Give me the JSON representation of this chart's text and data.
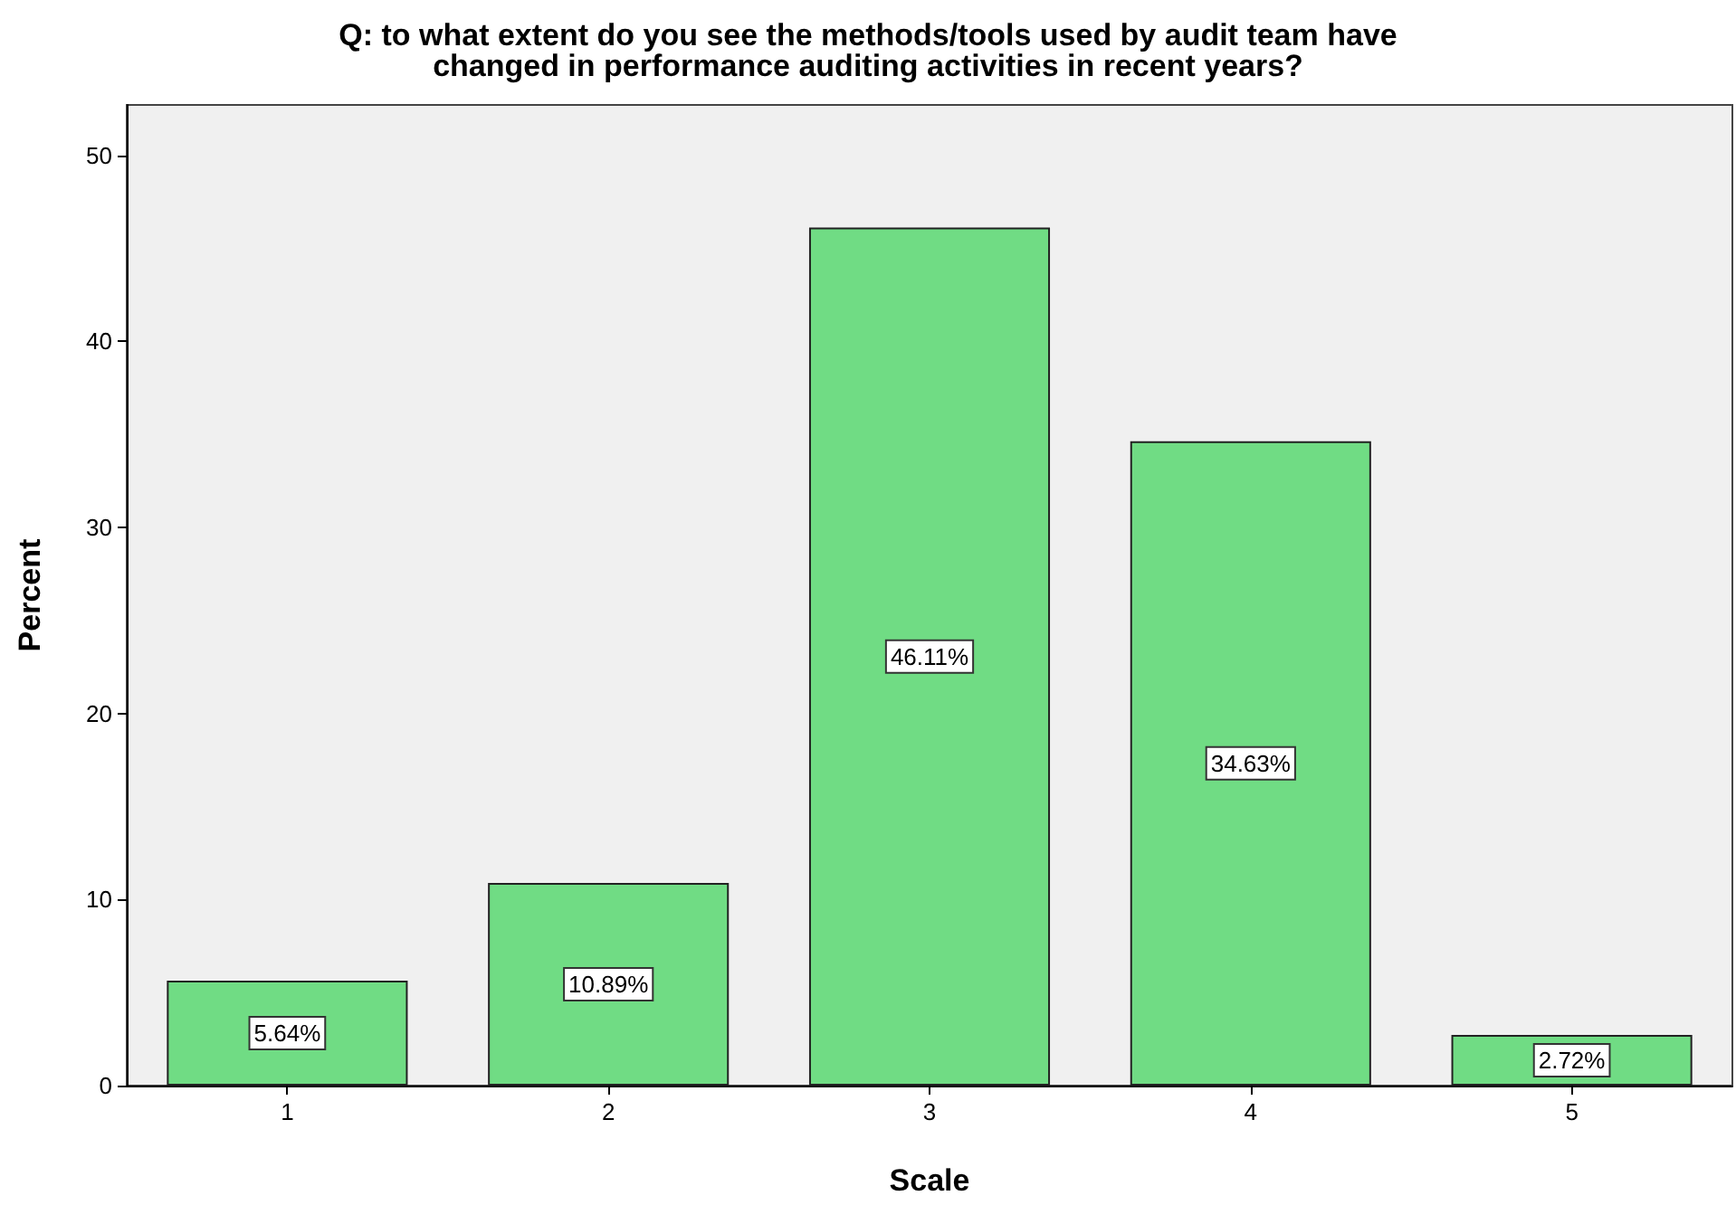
{
  "chart_data": {
    "type": "bar",
    "title": "Q: to what extent do you see the methods/tools used by audit team have\nchanged in performance auditing activities in recent years?",
    "xlabel": "Scale",
    "ylabel": "Percent",
    "categories": [
      "1",
      "2",
      "3",
      "4",
      "5"
    ],
    "values": [
      5.64,
      10.89,
      46.11,
      34.63,
      2.72
    ],
    "value_labels": [
      "5.64%",
      "10.89%",
      "46.11%",
      "34.63%",
      "2.72%"
    ],
    "color": "#70dc84",
    "ylim": [
      0,
      52.7
    ],
    "yticks": [
      0,
      10,
      20,
      30,
      40,
      50
    ],
    "grid": false
  }
}
